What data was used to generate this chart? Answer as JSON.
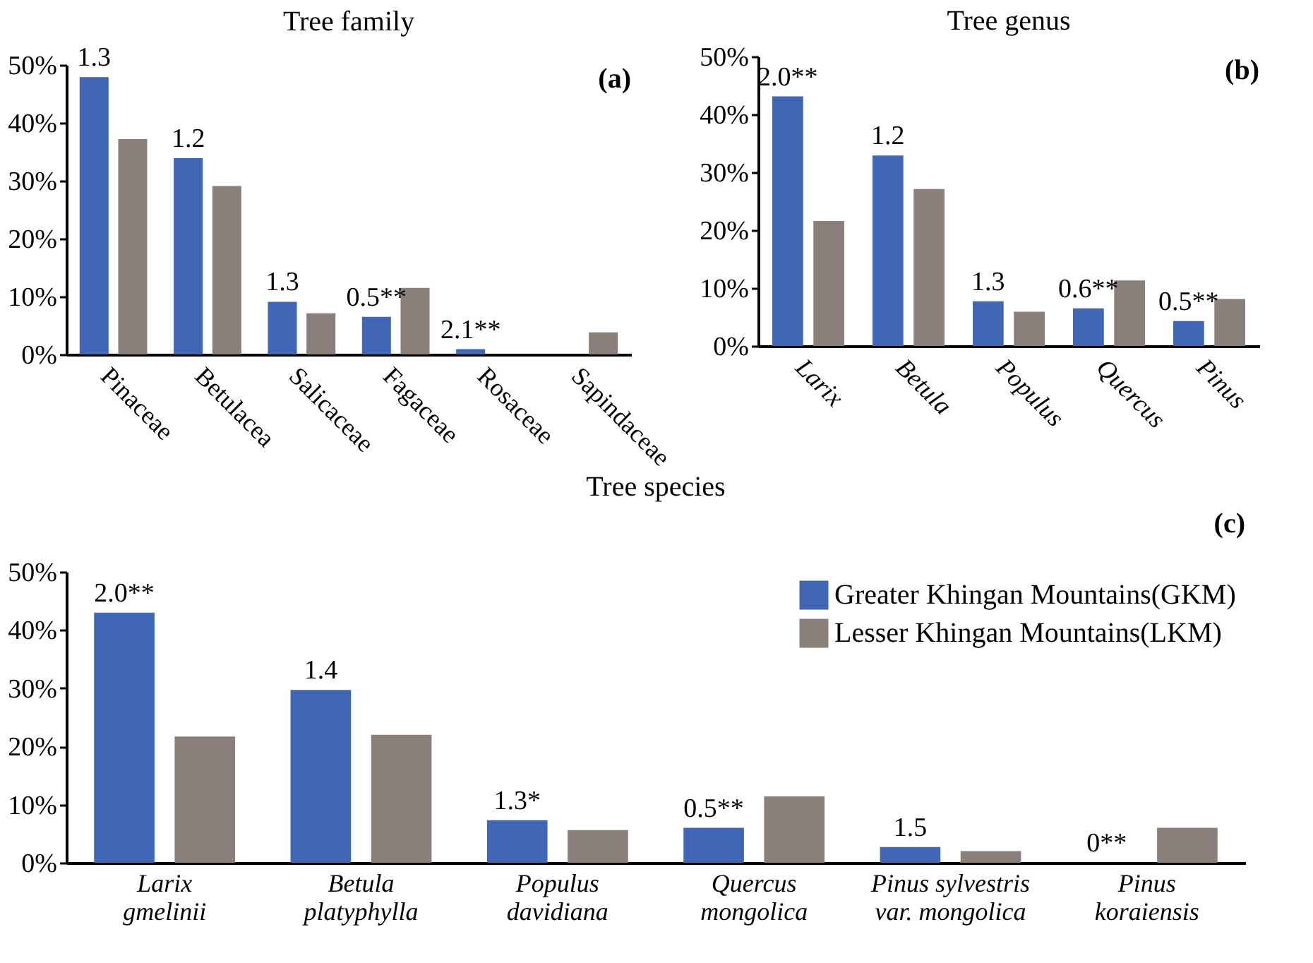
{
  "chart_data": [
    {
      "type": "bar",
      "title": "Tree family",
      "categories": [
        "Pinaceae",
        "Betulacea",
        "Salicaceae",
        "Fagaceae",
        "Rosaceae",
        "Sapindaceae"
      ],
      "series": [
        {
          "color": "#3f67b5",
          "values": [
            47.9,
            33.9,
            9.1,
            6.5,
            0.9,
            0
          ]
        },
        {
          "color": "#8a7f7a",
          "values": [
            37.2,
            29.1,
            7.1,
            11.5,
            0,
            3.8
          ]
        }
      ],
      "ylim": [
        0,
        50
      ],
      "yticks": [
        {
          "value": 0,
          "label": "0%"
        },
        {
          "value": 10,
          "label": "10%"
        },
        {
          "value": 20,
          "label": "20%"
        },
        {
          "value": 30,
          "label": "30%"
        },
        {
          "value": 40,
          "label": "40%"
        },
        {
          "value": 50,
          "label": "50%"
        }
      ],
      "annotations": [
        {
          "text": "1.3",
          "x": "Pinaceae",
          "y": 47.9
        },
        {
          "text": "1.2",
          "x": "Betulacea",
          "y": 33.9
        },
        {
          "text": "1.3",
          "x": "Salicaceae",
          "y": 9.1
        },
        {
          "text": "0.5**",
          "x": "Fagaceae",
          "y": 6.5
        },
        {
          "text": "2.1**",
          "x": "Rosaceae",
          "y": 0.9
        },
        "(a)"
      ],
      "grid": false
    },
    {
      "type": "bar",
      "title": "Tree genus",
      "categories": [
        "Larix",
        "Betula",
        "Populus",
        "Quercus",
        "Pinus"
      ],
      "series": [
        {
          "color": "#3f67b5",
          "values": [
            43.1,
            32.9,
            7.7,
            6.5,
            4.3
          ]
        },
        {
          "color": "#8a7f7a",
          "values": [
            21.6,
            27.1,
            5.9,
            11.3,
            8.1
          ]
        }
      ],
      "ylim": [
        0,
        50
      ],
      "yticks": [
        {
          "value": 0,
          "label": "0%"
        },
        {
          "value": 10,
          "label": "10%"
        },
        {
          "value": 20,
          "label": "20%"
        },
        {
          "value": 30,
          "label": "30%"
        },
        {
          "value": 40,
          "label": "40%"
        },
        {
          "value": 50,
          "label": "50%"
        }
      ],
      "annotations": [
        {
          "text": "2.0**",
          "x": "Larix",
          "y": 43.1
        },
        {
          "text": "1.2",
          "x": "Betula",
          "y": 32.9
        },
        {
          "text": "1.3",
          "x": "Populus",
          "y": 7.7
        },
        {
          "text": "0.6**",
          "x": "Quercus",
          "y": 6.5
        },
        {
          "text": "0.5**",
          "x": "Pinus",
          "y": 4.3
        },
        "(b)"
      ],
      "grid": false
    },
    {
      "type": "bar",
      "title": "Tree species",
      "categories": [
        "Larix gmelinii",
        "Betula platyphylla",
        "Populus davidiana",
        "Quercus mongolica",
        "Pinus sylvestris var. mongolica",
        "Pinus koraiensis"
      ],
      "series": [
        {
          "name": "Greater Khingan Mountains(GKM)",
          "color": "#3f67b5",
          "values": [
            43,
            29.7,
            7.3,
            6,
            2.7,
            0
          ]
        },
        {
          "name": "Lesser Khingan Mountains(LKM)",
          "color": "#8a7f7a",
          "values": [
            21.7,
            22,
            5.6,
            11.4,
            2,
            6
          ]
        }
      ],
      "ylim": [
        0,
        50
      ],
      "yticks": [
        {
          "value": 0,
          "label": "0%"
        },
        {
          "value": 10,
          "label": "10%"
        },
        {
          "value": 20,
          "label": "20%"
        },
        {
          "value": 30,
          "label": "30%"
        },
        {
          "value": 40,
          "label": "40%"
        },
        {
          "value": 50,
          "label": "50%"
        }
      ],
      "annotations": [
        "2.0**",
        "1.4",
        "1.3*",
        "0.5**",
        "1.5",
        "0**",
        "(c)"
      ],
      "grid": false,
      "legend": "top right"
    }
  ]
}
